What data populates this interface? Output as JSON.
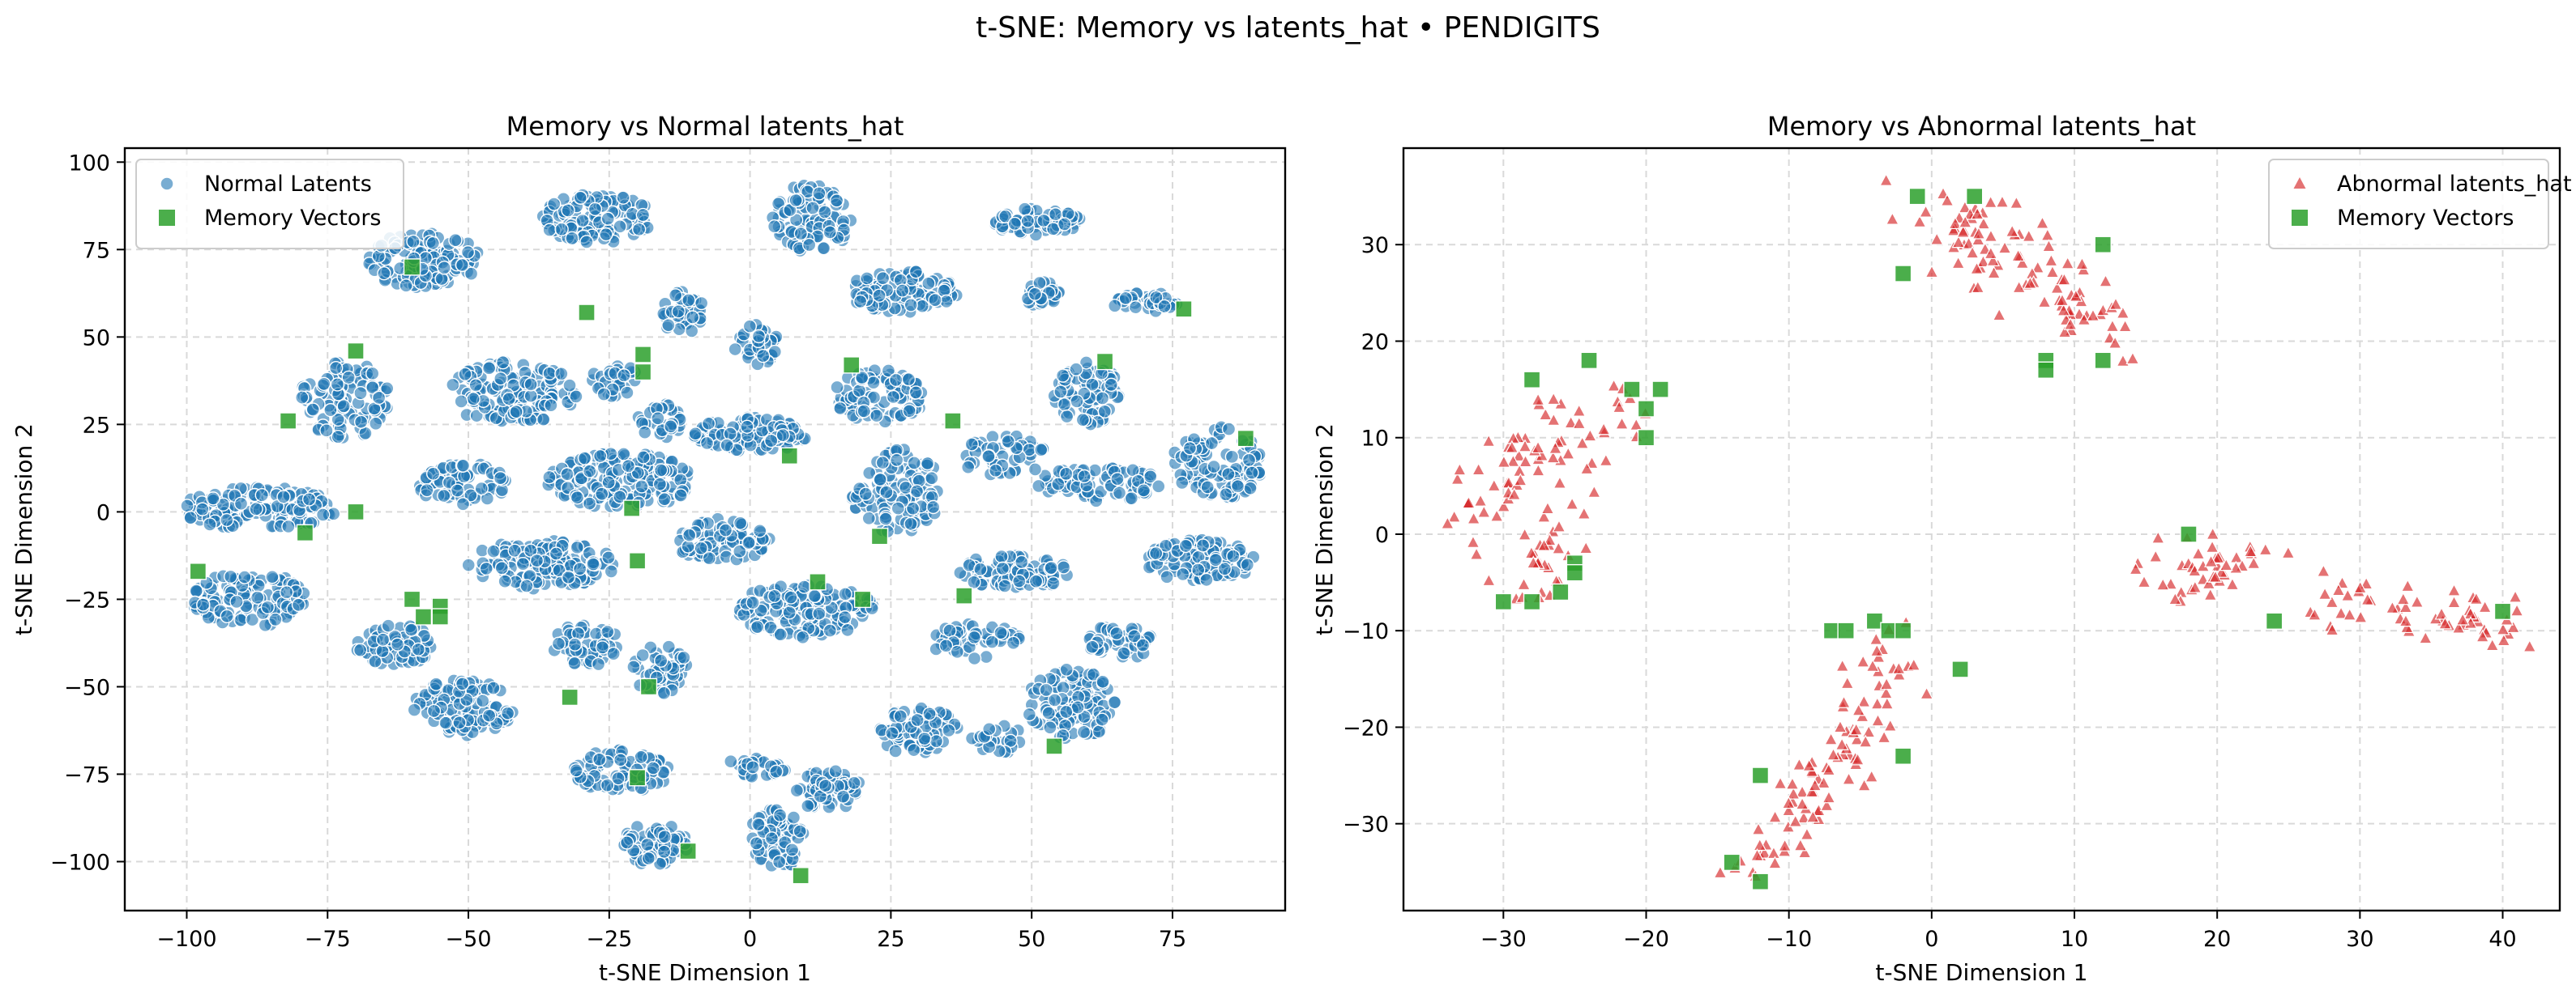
{
  "figure": {
    "title": "t-SNE: Memory vs latents_hat • PENDIGITS"
  },
  "chart_data": [
    {
      "type": "scatter",
      "title": "Memory vs Normal latents_hat",
      "xlabel": "t-SNE Dimension 1",
      "ylabel": "t-SNE Dimension 2",
      "xlim": [
        -111,
        95
      ],
      "ylim": [
        -114,
        104
      ],
      "xticks": [
        -100,
        -75,
        -50,
        -25,
        0,
        25,
        50,
        75
      ],
      "yticks": [
        -100,
        -75,
        -50,
        -25,
        0,
        25,
        50,
        75,
        100
      ],
      "grid": true,
      "legend": "top-left",
      "series": [
        {
          "name": "Normal Latents",
          "marker": "circle",
          "color": "#1f77b4",
          "clusters": [
            {
              "cx": -27,
              "cy": 84,
              "rx": 10,
              "ry": 7,
              "n": 120
            },
            {
              "cx": -58,
              "cy": 72,
              "rx": 10,
              "ry": 8,
              "n": 120
            },
            {
              "cx": 11,
              "cy": 84,
              "rx": 7,
              "ry": 10,
              "n": 100
            },
            {
              "cx": 51,
              "cy": 83,
              "rx": 8,
              "ry": 4,
              "n": 70
            },
            {
              "cx": 27,
              "cy": 63,
              "rx": 10,
              "ry": 6,
              "n": 100
            },
            {
              "cx": 52,
              "cy": 62,
              "rx": 3,
              "ry": 4,
              "n": 25
            },
            {
              "cx": 70,
              "cy": 60,
              "rx": 6,
              "ry": 3,
              "n": 35
            },
            {
              "cx": -12,
              "cy": 57,
              "rx": 4,
              "ry": 6,
              "n": 40
            },
            {
              "cx": 1,
              "cy": 48,
              "rx": 4,
              "ry": 6,
              "n": 40
            },
            {
              "cx": -42,
              "cy": 34,
              "rx": 12,
              "ry": 9,
              "n": 140
            },
            {
              "cx": -72,
              "cy": 32,
              "rx": 8,
              "ry": 11,
              "n": 100
            },
            {
              "cx": 23,
              "cy": 33,
              "rx": 8,
              "ry": 8,
              "n": 90
            },
            {
              "cx": 60,
              "cy": 34,
              "rx": 6,
              "ry": 9,
              "n": 80
            },
            {
              "cx": -24,
              "cy": 38,
              "rx": 4,
              "ry": 5,
              "n": 30
            },
            {
              "cx": -16,
              "cy": 26,
              "rx": 4,
              "ry": 5,
              "n": 30
            },
            {
              "cx": 0,
              "cy": 22,
              "rx": 10,
              "ry": 5,
              "n": 100
            },
            {
              "cx": 83,
              "cy": 14,
              "rx": 8,
              "ry": 11,
              "n": 100
            },
            {
              "cx": -87,
              "cy": 1,
              "rx": 14,
              "ry": 6,
              "n": 130
            },
            {
              "cx": -51,
              "cy": 8,
              "rx": 8,
              "ry": 6,
              "n": 70
            },
            {
              "cx": -23,
              "cy": 9,
              "rx": 13,
              "ry": 8,
              "n": 170
            },
            {
              "cx": 26,
              "cy": 6,
              "rx": 8,
              "ry": 12,
              "n": 110
            },
            {
              "cx": 62,
              "cy": 8,
              "rx": 11,
              "ry": 5,
              "n": 80
            },
            {
              "cx": 45,
              "cy": 16,
              "rx": 8,
              "ry": 6,
              "n": 50
            },
            {
              "cx": -5,
              "cy": -8,
              "rx": 9,
              "ry": 6,
              "n": 90
            },
            {
              "cx": -37,
              "cy": -15,
              "rx": 13,
              "ry": 7,
              "n": 140
            },
            {
              "cx": 80,
              "cy": -14,
              "rx": 10,
              "ry": 6,
              "n": 100
            },
            {
              "cx": 47,
              "cy": -17,
              "rx": 10,
              "ry": 5,
              "n": 80
            },
            {
              "cx": -89,
              "cy": -25,
              "rx": 10,
              "ry": 8,
              "n": 120
            },
            {
              "cx": 10,
              "cy": -28,
              "rx": 12,
              "ry": 8,
              "n": 140
            },
            {
              "cx": -63,
              "cy": -38,
              "rx": 7,
              "ry": 6,
              "n": 70
            },
            {
              "cx": -29,
              "cy": -38,
              "rx": 6,
              "ry": 6,
              "n": 60
            },
            {
              "cx": 40,
              "cy": -37,
              "rx": 8,
              "ry": 5,
              "n": 50
            },
            {
              "cx": 66,
              "cy": -37,
              "rx": 6,
              "ry": 5,
              "n": 50
            },
            {
              "cx": -51,
              "cy": -56,
              "rx": 9,
              "ry": 8,
              "n": 110
            },
            {
              "cx": -16,
              "cy": -45,
              "rx": 5,
              "ry": 7,
              "n": 50
            },
            {
              "cx": 57,
              "cy": -55,
              "rx": 8,
              "ry": 10,
              "n": 100
            },
            {
              "cx": 30,
              "cy": -63,
              "rx": 7,
              "ry": 7,
              "n": 70
            },
            {
              "cx": -23,
              "cy": -74,
              "rx": 9,
              "ry": 6,
              "n": 80
            },
            {
              "cx": 14,
              "cy": -80,
              "rx": 6,
              "ry": 6,
              "n": 60
            },
            {
              "cx": 1,
              "cy": -73,
              "rx": 6,
              "ry": 3,
              "n": 30
            },
            {
              "cx": -17,
              "cy": -95,
              "rx": 6,
              "ry": 6,
              "n": 70
            },
            {
              "cx": 5,
              "cy": -93,
              "rx": 5,
              "ry": 9,
              "n": 70
            },
            {
              "cx": 44,
              "cy": -65,
              "rx": 5,
              "ry": 4,
              "n": 25
            }
          ]
        },
        {
          "name": "Memory Vectors",
          "marker": "square",
          "color": "#2ca02c",
          "points": [
            [
              -60,
              70
            ],
            [
              -29,
              57
            ],
            [
              -70,
              46
            ],
            [
              -19,
              45
            ],
            [
              -19,
              40
            ],
            [
              -82,
              26
            ],
            [
              -79,
              -6
            ],
            [
              -70,
              0
            ],
            [
              -98,
              -17
            ],
            [
              -60,
              -25
            ],
            [
              -58,
              -30
            ],
            [
              -55,
              -27
            ],
            [
              -55,
              -30
            ],
            [
              -21,
              1
            ],
            [
              -20,
              -14
            ],
            [
              -18,
              -50
            ],
            [
              -32,
              -53
            ],
            [
              -20,
              -76
            ],
            [
              -11,
              -97
            ],
            [
              7,
              16
            ],
            [
              18,
              42
            ],
            [
              36,
              26
            ],
            [
              23,
              -7
            ],
            [
              12,
              -20
            ],
            [
              20,
              -25
            ],
            [
              38,
              -24
            ],
            [
              77,
              58
            ],
            [
              63,
              43
            ],
            [
              88,
              21
            ],
            [
              54,
              -67
            ],
            [
              9,
              -104
            ]
          ]
        }
      ]
    },
    {
      "type": "scatter",
      "title": "Memory vs Abnormal latents_hat",
      "xlabel": "t-SNE Dimension 1",
      "ylabel": "t-SNE Dimension 2",
      "xlim": [
        -37,
        44
      ],
      "ylim": [
        -39,
        40
      ],
      "xticks": [
        -30,
        -20,
        -10,
        0,
        10,
        20,
        30,
        40
      ],
      "yticks": [
        -30,
        -20,
        -10,
        0,
        10,
        20,
        30
      ],
      "grid": true,
      "legend": "top-right",
      "series": [
        {
          "name": "Abnormal latents_hat",
          "marker": "triangle",
          "color": "#d62728",
          "segments": [
            {
              "x0": 1,
              "y0": 33,
              "x1": 9,
              "y1": 27,
              "spread": 3,
              "n": 70
            },
            {
              "x0": 9,
              "y0": 26,
              "x1": 13,
              "y1": 20,
              "spread": 2,
              "n": 35
            },
            {
              "x0": -33,
              "y0": 0,
              "x1": -25,
              "y1": 13,
              "spread": 2.5,
              "n": 55
            },
            {
              "x0": -28,
              "y0": -2,
              "x1": -21,
              "y1": 15,
              "spread": 2,
              "n": 30
            },
            {
              "x0": -29,
              "y0": -7,
              "x1": -26,
              "y1": -1,
              "spread": 1.5,
              "n": 20
            },
            {
              "x0": -13,
              "y0": -34,
              "x1": -6,
              "y1": -24,
              "spread": 2,
              "n": 45
            },
            {
              "x0": -7,
              "y0": -26,
              "x1": -3,
              "y1": -11,
              "spread": 2,
              "n": 55
            },
            {
              "x0": 16,
              "y0": -5,
              "x1": 24,
              "y1": -2,
              "spread": 2,
              "n": 45
            },
            {
              "x0": 27,
              "y0": -7,
              "x1": 40,
              "y1": -9,
              "spread": 2,
              "n": 60
            }
          ]
        },
        {
          "name": "Memory Vectors",
          "marker": "square",
          "color": "#2ca02c",
          "points": [
            [
              -1,
              35
            ],
            [
              3,
              35
            ],
            [
              -2,
              27
            ],
            [
              12,
              30
            ],
            [
              8,
              18
            ],
            [
              8,
              17
            ],
            [
              12,
              18
            ],
            [
              -28,
              16
            ],
            [
              -24,
              18
            ],
            [
              -21,
              15
            ],
            [
              -19,
              15
            ],
            [
              -20,
              13
            ],
            [
              -20,
              10
            ],
            [
              -25,
              -3
            ],
            [
              -25,
              -4
            ],
            [
              -26,
              -6
            ],
            [
              -28,
              -7
            ],
            [
              -30,
              -7
            ],
            [
              -7,
              -10
            ],
            [
              -6,
              -10
            ],
            [
              -4,
              -9
            ],
            [
              -3,
              -10
            ],
            [
              -2,
              -10
            ],
            [
              2,
              -14
            ],
            [
              -2,
              -23
            ],
            [
              -12,
              -25
            ],
            [
              -14,
              -34
            ],
            [
              -12,
              -36
            ],
            [
              18,
              0
            ],
            [
              24,
              -9
            ],
            [
              40,
              -8
            ]
          ]
        }
      ]
    }
  ]
}
